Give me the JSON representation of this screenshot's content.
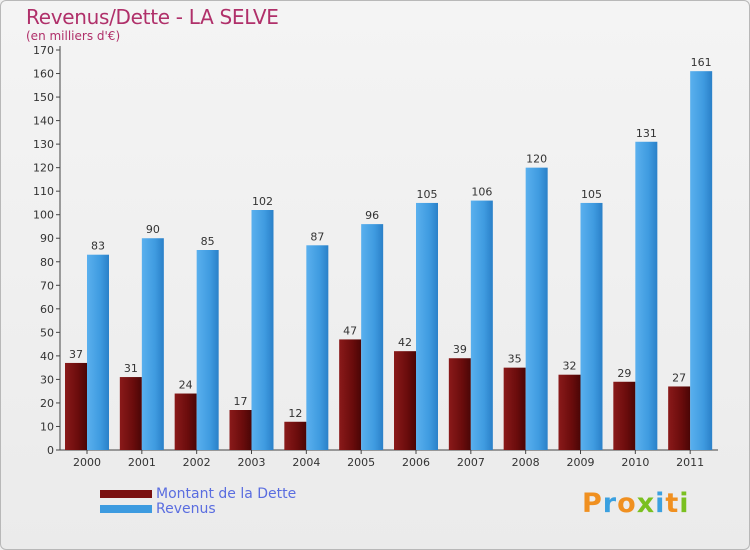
{
  "chart_data": {
    "type": "bar",
    "title": "Revenus/Dette - LA SELVE",
    "subtitle": "(en milliers d'€)",
    "categories": [
      "2000",
      "2001",
      "2002",
      "2003",
      "2004",
      "2005",
      "2006",
      "2007",
      "2008",
      "2009",
      "2010",
      "2011"
    ],
    "series": [
      {
        "name": "Montant de la Dette",
        "color": "#7a1010",
        "values": [
          37,
          31,
          24,
          17,
          12,
          47,
          42,
          39,
          35,
          32,
          29,
          27
        ]
      },
      {
        "name": "Revenus",
        "color": "#3d9be0",
        "values": [
          83,
          90,
          85,
          102,
          87,
          96,
          105,
          106,
          120,
          105,
          131,
          161
        ]
      }
    ],
    "ylim": [
      0,
      170
    ],
    "ytick_step": 10,
    "grid": false,
    "legend_position": "bottom-left"
  },
  "logo": {
    "text": "Proxiti",
    "colors": [
      "#f09020",
      "#3aa0e0",
      "#f09020",
      "#7ac020",
      "#3aa0e0",
      "#f09020",
      "#7ac020"
    ]
  }
}
